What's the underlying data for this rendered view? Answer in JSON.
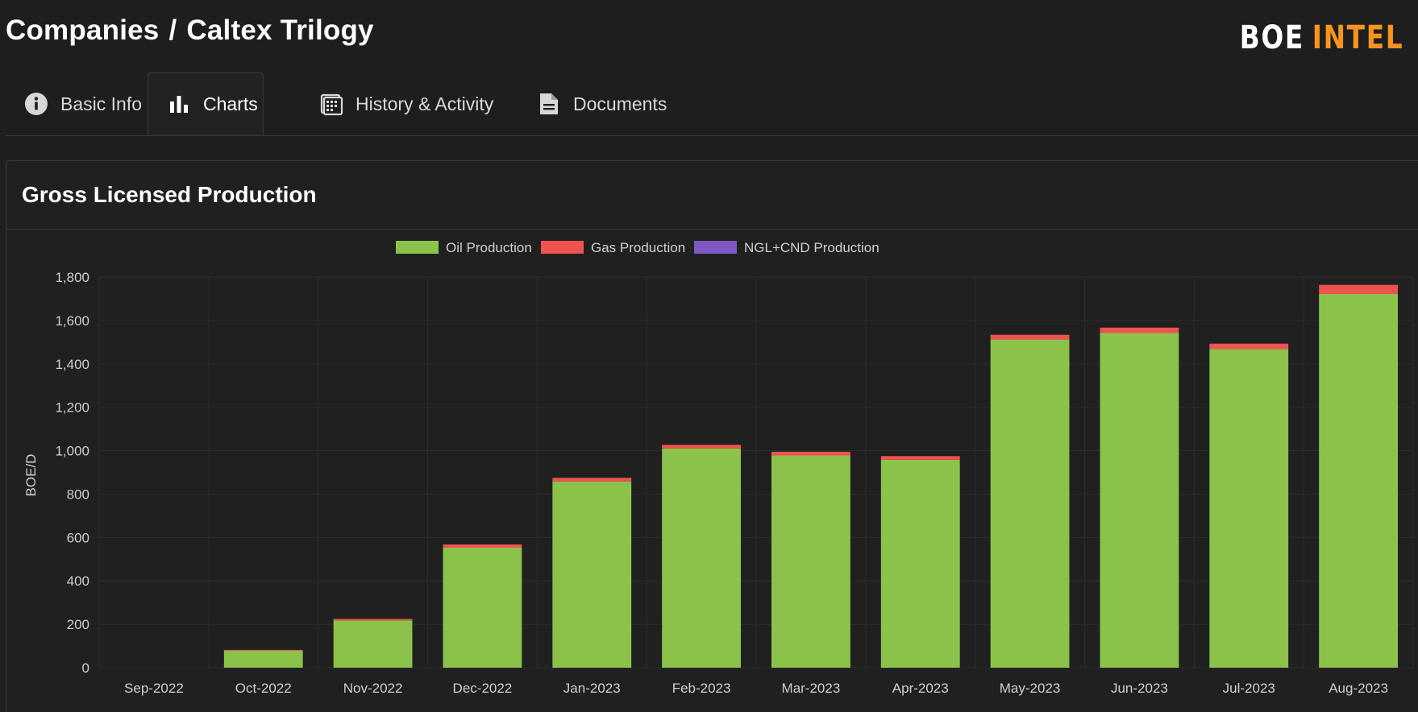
{
  "header": {
    "breadcrumb_root": "Companies",
    "breadcrumb_sep": "/",
    "breadcrumb_current": "Caltex Trilogy",
    "logo_part1": "BOE",
    "logo_part2": "INTEL"
  },
  "tabs": [
    {
      "label": "Basic Info",
      "icon": "info-icon"
    },
    {
      "label": "Charts",
      "icon": "bar-chart-icon",
      "active": true
    },
    {
      "label": "History & Activity",
      "icon": "calendar-icon"
    },
    {
      "label": "Documents",
      "icon": "document-icon"
    }
  ],
  "card": {
    "title": "Gross Licensed Production"
  },
  "colors": {
    "oil": "#8bc34a",
    "gas": "#ef5350",
    "ngl": "#7e57c2",
    "accent": "#f7941d"
  },
  "chart_data": {
    "type": "bar",
    "stacked": true,
    "ylabel": "BOE/D",
    "ylim": [
      0,
      1800
    ],
    "yticks": [
      0,
      200,
      400,
      600,
      800,
      1000,
      1200,
      1400,
      1600,
      1800
    ],
    "grid": true,
    "legend_position": "top-center",
    "categories": [
      "Sep-2022",
      "Oct-2022",
      "Nov-2022",
      "Dec-2022",
      "Jan-2023",
      "Feb-2023",
      "Mar-2023",
      "Apr-2023",
      "May-2023",
      "Jun-2023",
      "Jul-2023",
      "Aug-2023"
    ],
    "series": [
      {
        "name": "Oil Production",
        "color": "#8bc34a",
        "values": [
          0,
          78,
          218,
          553,
          858,
          1010,
          978,
          958,
          1512,
          1542,
          1468,
          1722
        ]
      },
      {
        "name": "Gas Production",
        "color": "#ef5350",
        "values": [
          0,
          4,
          7,
          15,
          17,
          17,
          17,
          17,
          22,
          25,
          25,
          42
        ]
      },
      {
        "name": "NGL+CND Production",
        "color": "#7e57c2",
        "values": [
          0,
          0,
          0,
          0,
          0,
          0,
          0,
          0,
          0,
          0,
          0,
          0
        ]
      }
    ]
  }
}
